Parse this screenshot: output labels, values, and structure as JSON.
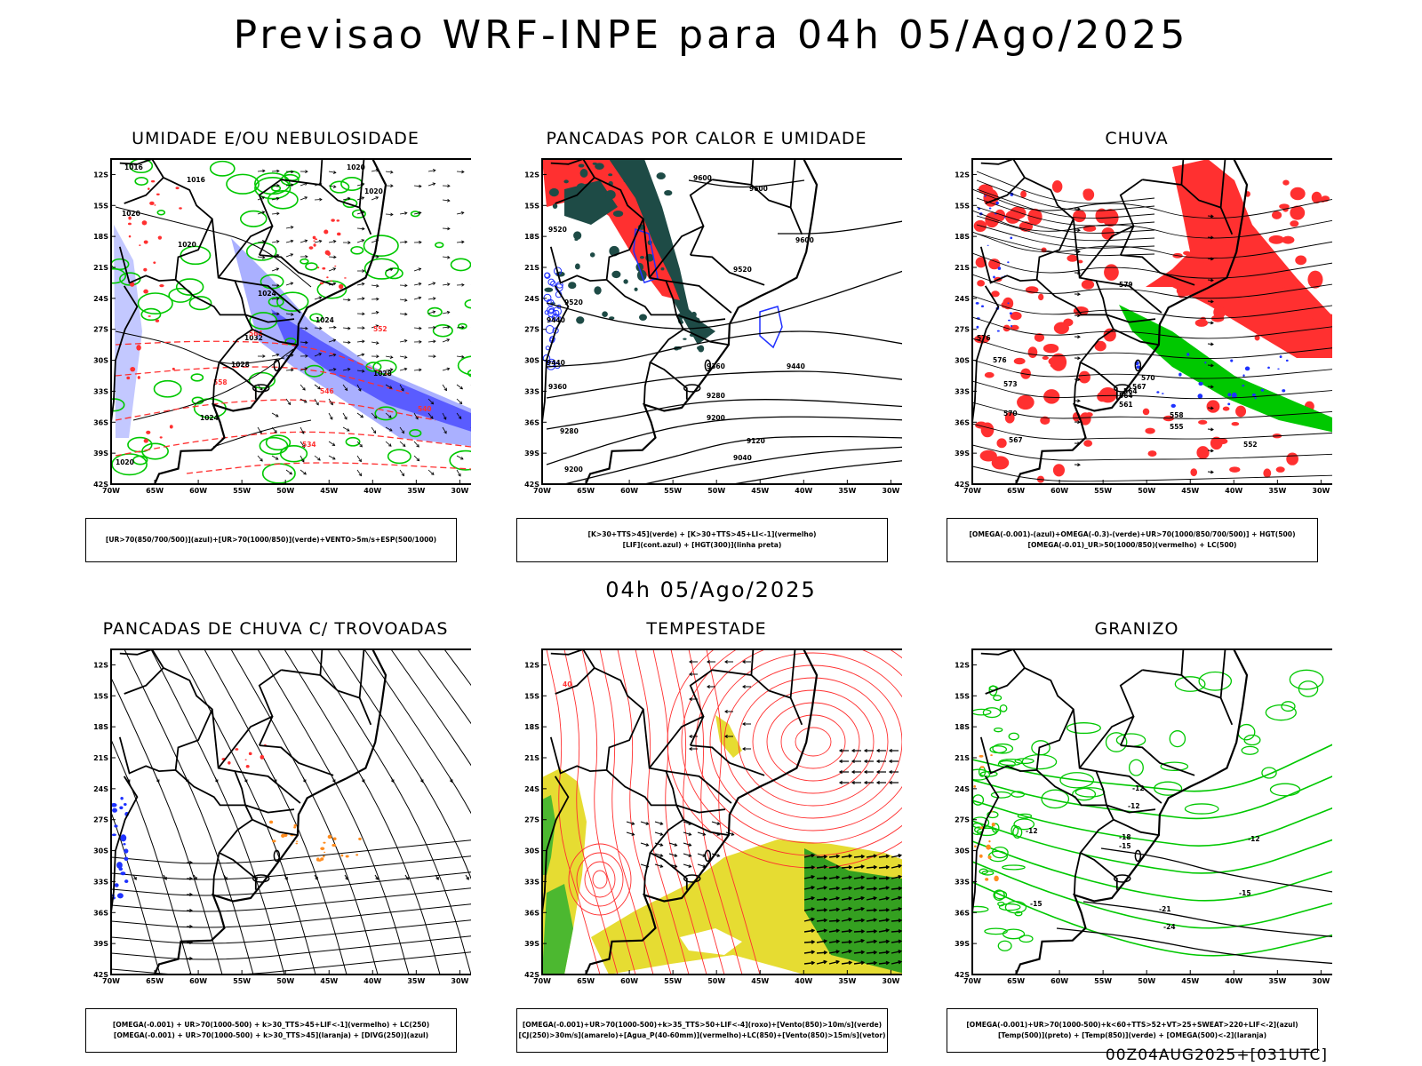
{
  "title": "Previsao WRF-INPE  para 04h 05/Ago/2025",
  "mid_title": "04h 05/Ago/2025",
  "footer": "00Z04AUG2025+[031UTC]",
  "axes": {
    "lat_labels": [
      "12S",
      "15S",
      "18S",
      "21S",
      "24S",
      "27S",
      "30S",
      "33S",
      "36S",
      "39S",
      "42S"
    ],
    "lon_labels": [
      "70W",
      "65W",
      "60W",
      "55W",
      "50W",
      "45W",
      "40W",
      "35W",
      "30W"
    ]
  },
  "colors": {
    "humidity_blue": "#aab0ff",
    "humidity_blue_dark": "#5a5cff",
    "green": "#00c800",
    "red": "#ff3030",
    "dark_teal": "#1e4b46",
    "yellow": "#e6dc32",
    "orange": "#ff8c1e"
  },
  "panels": [
    {
      "id": "p1",
      "title": "UMIDADE E/OU NEBULOSIDADE",
      "legend": [
        "[UR>70(850/700/500)](azul)+[UR>70(1000/850)](verde)+VENTO>5m/s+ESP(500/1000)"
      ],
      "contour_labels": [
        "1016",
        "1016",
        "1020",
        "1020",
        "1020",
        "1020",
        "1024",
        "1024",
        "1028",
        "1032",
        "1028",
        "1024",
        "1020",
        "564",
        "558",
        "552",
        "546",
        "540",
        "534"
      ]
    },
    {
      "id": "p2",
      "title": "PANCADAS POR CALOR E UMIDADE",
      "legend": [
        "[K>30+TTS>45](verde) + [K>30+TTS>45+LI<-1](vermelho)",
        "[LIF](cont.azul) + [HGT(300)](linha preta)"
      ],
      "contour_labels": [
        "9600",
        "9600",
        "9600",
        "9520",
        "9520",
        "9520",
        "9440",
        "9440",
        "9440",
        "9360",
        "9360",
        "9280",
        "9280",
        "9200",
        "9200",
        "9120",
        "9040"
      ]
    },
    {
      "id": "p3",
      "title": "CHUVA",
      "legend": [
        "[OMEGA(-0.001)-(azul)+OMEGA(-0.3)-(verde)+UR>70(1000/850/700/500)] + HGT(500)",
        "[OMEGA(-0.01)_UR>50(1000/850)(vermelho) + LC(500)"
      ],
      "contour_labels": [
        "579",
        "576",
        "576",
        "573",
        "570",
        "570",
        "567",
        "564",
        "561",
        "558",
        "555",
        "552",
        "567",
        "564"
      ]
    },
    {
      "id": "p4",
      "title": "PANCADAS DE CHUVA C/ TROVOADAS",
      "legend": [
        "[OMEGA(-0.001) + UR>70(1000-500) + k>30_TTS>45+LIF<-1](vermelho) + LC(250)",
        "[OMEGA(-0.001) + UR>70(1000-500) + k>30_TTS>45](laranja) + [DIVG(250)](azul)"
      ],
      "contour_labels": []
    },
    {
      "id": "p5",
      "title": "TEMPESTADE",
      "legend": [
        "[OMEGA(-0.001)+UR>70(1000-500)+k>35_TTS>50+LIF<-4](roxo)+[Vento(850)>10m/s](verde)",
        "[CJ(250)>30m/s](amarelo)+[Agua_P(40-60mm)](vermelho)+LC(850)+[Vento(850)>15m/s](vetor)"
      ],
      "contour_labels": [
        "40"
      ]
    },
    {
      "id": "p6",
      "title": "GRANIZO",
      "legend": [
        "[OMEGA(-0.001)+UR>70(1000-500)+k<60+TTS>52+VT>25+SWEAT>220+LIF<-2](azul)",
        "[Temp(500)](preto) + [Temp(850)](verde) + [OMEGA(500)<-2](laranja)"
      ],
      "contour_labels": [
        "-12",
        "-12",
        "-12",
        "-15",
        "-15",
        "-18",
        "-21",
        "-24",
        "-12",
        "-15"
      ]
    }
  ]
}
